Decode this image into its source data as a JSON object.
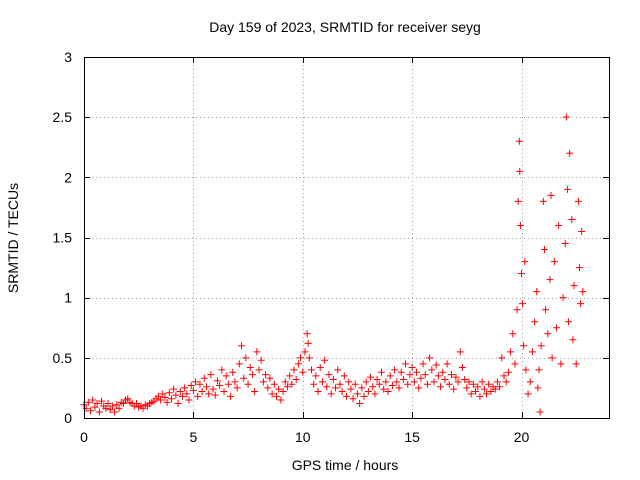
{
  "chart_data": {
    "type": "scatter",
    "title": "Day 159 of 2023, SRMTID for receiver seyg",
    "xlabel": "GPS time / hours",
    "ylabel": "SRMTID / TECUs",
    "xlim": [
      0,
      24
    ],
    "ylim": [
      0,
      3
    ],
    "xticks": [
      0,
      5,
      10,
      15,
      20
    ],
    "xtick_labels": [
      "0",
      "5",
      "10",
      "15",
      "20"
    ],
    "yticks": [
      0,
      0.5,
      1,
      1.5,
      2,
      2.5,
      3
    ],
    "ytick_labels": [
      "0",
      "0.5",
      "1",
      "1.5",
      "2",
      "2.5",
      "3"
    ],
    "grid": true,
    "marker": "+",
    "marker_color": "#ff0000",
    "series": [
      {
        "name": "SRMTID",
        "points": [
          [
            0.0,
            0.11
          ],
          [
            0.1,
            0.08
          ],
          [
            0.2,
            0.13
          ],
          [
            0.3,
            0.06
          ],
          [
            0.4,
            0.15
          ],
          [
            0.5,
            0.09
          ],
          [
            0.6,
            0.12
          ],
          [
            0.7,
            0.05
          ],
          [
            0.8,
            0.14
          ],
          [
            0.9,
            0.1
          ],
          [
            1.0,
            0.08
          ],
          [
            1.1,
            0.12
          ],
          [
            1.2,
            0.07
          ],
          [
            1.3,
            0.1
          ],
          [
            1.4,
            0.05
          ],
          [
            1.5,
            0.11
          ],
          [
            1.6,
            0.08
          ],
          [
            1.7,
            0.13
          ],
          [
            1.8,
            0.12
          ],
          [
            1.9,
            0.15
          ],
          [
            2.0,
            0.16
          ],
          [
            2.1,
            0.13
          ],
          [
            2.2,
            0.12
          ],
          [
            2.3,
            0.1
          ],
          [
            2.4,
            0.12
          ],
          [
            2.5,
            0.09
          ],
          [
            2.6,
            0.1
          ],
          [
            2.7,
            0.08
          ],
          [
            2.8,
            0.11
          ],
          [
            2.9,
            0.1
          ],
          [
            3.0,
            0.12
          ],
          [
            3.1,
            0.13
          ],
          [
            3.2,
            0.14
          ],
          [
            3.3,
            0.16
          ],
          [
            3.4,
            0.18
          ],
          [
            3.5,
            0.15
          ],
          [
            3.6,
            0.2
          ],
          [
            3.7,
            0.17
          ],
          [
            3.8,
            0.13
          ],
          [
            3.9,
            0.21
          ],
          [
            4.0,
            0.16
          ],
          [
            4.1,
            0.24
          ],
          [
            4.2,
            0.19
          ],
          [
            4.3,
            0.12
          ],
          [
            4.4,
            0.22
          ],
          [
            4.5,
            0.18
          ],
          [
            4.6,
            0.25
          ],
          [
            4.7,
            0.2
          ],
          [
            4.8,
            0.15
          ],
          [
            4.9,
            0.27
          ],
          [
            5.0,
            0.23
          ],
          [
            5.1,
            0.3
          ],
          [
            5.2,
            0.18
          ],
          [
            5.3,
            0.28
          ],
          [
            5.4,
            0.22
          ],
          [
            5.5,
            0.33
          ],
          [
            5.6,
            0.26
          ],
          [
            5.7,
            0.2
          ],
          [
            5.8,
            0.36
          ],
          [
            5.9,
            0.24
          ],
          [
            6.0,
            0.19
          ],
          [
            6.1,
            0.31
          ],
          [
            6.2,
            0.27
          ],
          [
            6.3,
            0.4
          ],
          [
            6.4,
            0.22
          ],
          [
            6.5,
            0.35
          ],
          [
            6.6,
            0.28
          ],
          [
            6.7,
            0.18
          ],
          [
            6.8,
            0.38
          ],
          [
            6.9,
            0.3
          ],
          [
            7.0,
            0.25
          ],
          [
            7.1,
            0.45
          ],
          [
            7.2,
            0.6
          ],
          [
            7.3,
            0.33
          ],
          [
            7.4,
            0.5
          ],
          [
            7.5,
            0.28
          ],
          [
            7.6,
            0.42
          ],
          [
            7.7,
            0.36
          ],
          [
            7.8,
            0.22
          ],
          [
            7.9,
            0.55
          ],
          [
            8.0,
            0.4
          ],
          [
            8.1,
            0.48
          ],
          [
            8.2,
            0.3
          ],
          [
            8.3,
            0.36
          ],
          [
            8.4,
            0.25
          ],
          [
            8.5,
            0.33
          ],
          [
            8.6,
            0.2
          ],
          [
            8.7,
            0.28
          ],
          [
            8.8,
            0.18
          ],
          [
            8.9,
            0.24
          ],
          [
            9.0,
            0.15
          ],
          [
            9.1,
            0.22
          ],
          [
            9.2,
            0.3
          ],
          [
            9.3,
            0.26
          ],
          [
            9.4,
            0.35
          ],
          [
            9.5,
            0.28
          ],
          [
            9.6,
            0.4
          ],
          [
            9.7,
            0.32
          ],
          [
            9.8,
            0.45
          ],
          [
            9.9,
            0.5
          ],
          [
            10.0,
            0.38
          ],
          [
            10.1,
            0.55
          ],
          [
            10.2,
            0.7
          ],
          [
            10.25,
            0.62
          ],
          [
            10.3,
            0.5
          ],
          [
            10.4,
            0.4
          ],
          [
            10.5,
            0.28
          ],
          [
            10.6,
            0.35
          ],
          [
            10.7,
            0.22
          ],
          [
            10.8,
            0.42
          ],
          [
            10.9,
            0.3
          ],
          [
            11.0,
            0.48
          ],
          [
            11.1,
            0.26
          ],
          [
            11.2,
            0.36
          ],
          [
            11.3,
            0.2
          ],
          [
            11.4,
            0.32
          ],
          [
            11.5,
            0.25
          ],
          [
            11.6,
            0.4
          ],
          [
            11.7,
            0.28
          ],
          [
            11.8,
            0.22
          ],
          [
            11.9,
            0.35
          ],
          [
            12.0,
            0.18
          ],
          [
            12.1,
            0.3
          ],
          [
            12.2,
            0.24
          ],
          [
            12.3,
            0.16
          ],
          [
            12.4,
            0.28
          ],
          [
            12.5,
            0.2
          ],
          [
            12.6,
            0.12
          ],
          [
            12.7,
            0.25
          ],
          [
            12.8,
            0.18
          ],
          [
            12.9,
            0.3
          ],
          [
            13.0,
            0.22
          ],
          [
            13.1,
            0.34
          ],
          [
            13.2,
            0.26
          ],
          [
            13.3,
            0.2
          ],
          [
            13.4,
            0.32
          ],
          [
            13.5,
            0.28
          ],
          [
            13.6,
            0.38
          ],
          [
            13.7,
            0.24
          ],
          [
            13.8,
            0.3
          ],
          [
            13.9,
            0.22
          ],
          [
            14.0,
            0.35
          ],
          [
            14.1,
            0.27
          ],
          [
            14.2,
            0.4
          ],
          [
            14.3,
            0.3
          ],
          [
            14.4,
            0.25
          ],
          [
            14.5,
            0.38
          ],
          [
            14.6,
            0.32
          ],
          [
            14.7,
            0.45
          ],
          [
            14.8,
            0.28
          ],
          [
            14.9,
            0.36
          ],
          [
            15.0,
            0.42
          ],
          [
            15.1,
            0.3
          ],
          [
            15.2,
            0.38
          ],
          [
            15.3,
            0.25
          ],
          [
            15.4,
            0.33
          ],
          [
            15.5,
            0.45
          ],
          [
            15.6,
            0.36
          ],
          [
            15.7,
            0.28
          ],
          [
            15.8,
            0.5
          ],
          [
            15.9,
            0.4
          ],
          [
            16.0,
            0.3
          ],
          [
            16.1,
            0.44
          ],
          [
            16.2,
            0.35
          ],
          [
            16.3,
            0.26
          ],
          [
            16.4,
            0.38
          ],
          [
            16.5,
            0.32
          ],
          [
            16.6,
            0.45
          ],
          [
            16.7,
            0.28
          ],
          [
            16.8,
            0.36
          ],
          [
            16.9,
            0.24
          ],
          [
            17.0,
            0.34
          ],
          [
            17.1,
            0.3
          ],
          [
            17.2,
            0.55
          ],
          [
            17.3,
            0.42
          ],
          [
            17.4,
            0.32
          ],
          [
            17.5,
            0.25
          ],
          [
            17.6,
            0.3
          ],
          [
            17.7,
            0.2
          ],
          [
            17.8,
            0.28
          ],
          [
            17.9,
            0.22
          ],
          [
            18.0,
            0.26
          ],
          [
            18.1,
            0.18
          ],
          [
            18.2,
            0.3
          ],
          [
            18.3,
            0.24
          ],
          [
            18.4,
            0.2
          ],
          [
            18.5,
            0.28
          ],
          [
            18.6,
            0.22
          ],
          [
            18.7,
            0.26
          ],
          [
            18.8,
            0.24
          ],
          [
            18.9,
            0.3
          ],
          [
            19.0,
            0.26
          ],
          [
            19.1,
            0.5
          ],
          [
            19.2,
            0.35
          ],
          [
            19.3,
            0.3
          ],
          [
            19.4,
            0.38
          ],
          [
            19.5,
            0.55
          ],
          [
            19.6,
            0.7
          ],
          [
            19.7,
            0.45
          ],
          [
            19.8,
            0.9
          ],
          [
            19.85,
            1.8
          ],
          [
            19.9,
            2.3
          ],
          [
            19.92,
            2.05
          ],
          [
            19.95,
            1.6
          ],
          [
            20.0,
            1.2
          ],
          [
            20.05,
            0.95
          ],
          [
            20.1,
            0.6
          ],
          [
            20.15,
            1.3
          ],
          [
            20.2,
            0.4
          ],
          [
            20.3,
            0.2
          ],
          [
            20.4,
            0.3
          ],
          [
            20.5,
            0.55
          ],
          [
            20.6,
            0.8
          ],
          [
            20.7,
            1.05
          ],
          [
            20.75,
            0.25
          ],
          [
            20.8,
            0.4
          ],
          [
            20.85,
            0.05
          ],
          [
            20.9,
            0.6
          ],
          [
            21.0,
            1.8
          ],
          [
            21.05,
            1.4
          ],
          [
            21.1,
            0.9
          ],
          [
            21.2,
            0.7
          ],
          [
            21.3,
            1.15
          ],
          [
            21.35,
            1.85
          ],
          [
            21.4,
            0.5
          ],
          [
            21.5,
            1.3
          ],
          [
            21.6,
            0.75
          ],
          [
            21.7,
            1.6
          ],
          [
            21.8,
            0.45
          ],
          [
            21.9,
            1.0
          ],
          [
            22.0,
            1.45
          ],
          [
            22.05,
            2.5
          ],
          [
            22.1,
            1.9
          ],
          [
            22.15,
            0.8
          ],
          [
            22.2,
            2.2
          ],
          [
            22.3,
            1.65
          ],
          [
            22.35,
            0.65
          ],
          [
            22.4,
            1.1
          ],
          [
            22.5,
            0.45
          ],
          [
            22.6,
            1.8
          ],
          [
            22.65,
            1.25
          ],
          [
            22.7,
            0.95
          ],
          [
            22.75,
            1.55
          ],
          [
            22.8,
            1.05
          ]
        ]
      }
    ]
  }
}
